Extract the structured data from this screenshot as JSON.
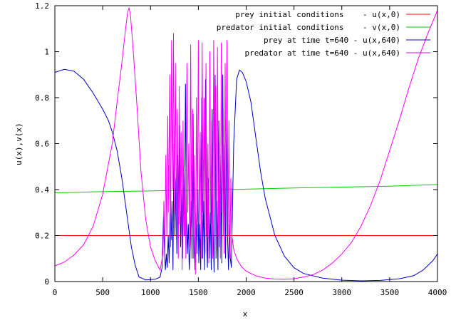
{
  "chart_data": {
    "type": "line",
    "title": "",
    "xlabel": "x",
    "ylabel": "u(x),v(x)",
    "xlim": [
      0,
      4000
    ],
    "ylim": [
      0,
      1.2
    ],
    "x_ticks": [
      0,
      500,
      1000,
      1500,
      2000,
      2500,
      3000,
      3500,
      4000
    ],
    "y_ticks": [
      0,
      0.2,
      0.4,
      0.6,
      0.8,
      1,
      1.2
    ],
    "grid": false,
    "legend_position": "top-right",
    "series": [
      {
        "name": "prey initial conditions    - u(x,0)",
        "color": "#ff0000",
        "points": [
          [
            0,
            0.2
          ],
          [
            4000,
            0.2
          ]
        ]
      },
      {
        "name": "predator initial conditions    - v(x,0)",
        "color": "#00cc00",
        "points": [
          [
            0,
            0.386
          ],
          [
            500,
            0.391
          ],
          [
            1000,
            0.394
          ],
          [
            1500,
            0.398
          ],
          [
            2000,
            0.402
          ],
          [
            2500,
            0.407
          ],
          [
            3000,
            0.411
          ],
          [
            3500,
            0.415
          ],
          [
            4000,
            0.422
          ]
        ]
      },
      {
        "name": "prey at time t=640 - u(x,640)",
        "color": "#0000cc",
        "points": [
          [
            0,
            0.91
          ],
          [
            100,
            0.923
          ],
          [
            200,
            0.915
          ],
          [
            300,
            0.88
          ],
          [
            400,
            0.82
          ],
          [
            500,
            0.75
          ],
          [
            560,
            0.7
          ],
          [
            600,
            0.65
          ],
          [
            650,
            0.57
          ],
          [
            700,
            0.45
          ],
          [
            750,
            0.3
          ],
          [
            800,
            0.15
          ],
          [
            840,
            0.07
          ],
          [
            880,
            0.02
          ],
          [
            950,
            0.007
          ],
          [
            1050,
            0.01
          ],
          [
            1100,
            0.02
          ],
          [
            1120,
            0.06
          ],
          [
            1135,
            0.28
          ],
          [
            1145,
            0.15
          ],
          [
            1155,
            0.05
          ],
          [
            1165,
            0.12
          ],
          [
            1175,
            0.06
          ],
          [
            1185,
            0.2
          ],
          [
            1195,
            0.08
          ],
          [
            1205,
            0.3
          ],
          [
            1215,
            0.18
          ],
          [
            1225,
            0.35
          ],
          [
            1235,
            0.05
          ],
          [
            1245,
            0.6
          ],
          [
            1255,
            0.2
          ],
          [
            1265,
            0.45
          ],
          [
            1275,
            0.12
          ],
          [
            1285,
            0.55
          ],
          [
            1295,
            0.25
          ],
          [
            1305,
            0.68
          ],
          [
            1315,
            0.15
          ],
          [
            1325,
            0.4
          ],
          [
            1335,
            0.1
          ],
          [
            1345,
            0.5
          ],
          [
            1355,
            0.2
          ],
          [
            1365,
            0.86
          ],
          [
            1375,
            0.3
          ],
          [
            1385,
            0.12
          ],
          [
            1395,
            0.25
          ],
          [
            1405,
            0.05
          ],
          [
            1415,
            0.15
          ],
          [
            1425,
            0.35
          ],
          [
            1435,
            0.1
          ],
          [
            1445,
            0.73
          ],
          [
            1455,
            0.2
          ],
          [
            1465,
            0.05
          ],
          [
            1475,
            0.3
          ],
          [
            1485,
            0.12
          ],
          [
            1495,
            0.4
          ],
          [
            1505,
            0.08
          ],
          [
            1515,
            0.25
          ],
          [
            1525,
            0.05
          ],
          [
            1535,
            0.8
          ],
          [
            1545,
            0.1
          ],
          [
            1555,
            0.35
          ],
          [
            1565,
            0.05
          ],
          [
            1575,
            0.88
          ],
          [
            1585,
            0.2
          ],
          [
            1595,
            0.06
          ],
          [
            1605,
            0.45
          ],
          [
            1615,
            0.1
          ],
          [
            1625,
            0.3
          ],
          [
            1635,
            0.05
          ],
          [
            1645,
            0.75
          ],
          [
            1655,
            0.2
          ],
          [
            1665,
            0.04
          ],
          [
            1675,
            0.9
          ],
          [
            1685,
            0.1
          ],
          [
            1695,
            0.35
          ],
          [
            1705,
            0.05
          ],
          [
            1715,
            0.7
          ],
          [
            1725,
            0.15
          ],
          [
            1735,
            0.55
          ],
          [
            1745,
            0.08
          ],
          [
            1755,
            0.9
          ],
          [
            1765,
            0.2
          ],
          [
            1775,
            0.6
          ],
          [
            1785,
            0.1
          ],
          [
            1795,
            0.72
          ],
          [
            1805,
            0.2
          ],
          [
            1815,
            0.05
          ],
          [
            1825,
            0.25
          ],
          [
            1835,
            0.1
          ],
          [
            1845,
            0.06
          ],
          [
            1870,
            0.6
          ],
          [
            1900,
            0.88
          ],
          [
            1930,
            0.92
          ],
          [
            1960,
            0.91
          ],
          [
            2000,
            0.87
          ],
          [
            2050,
            0.78
          ],
          [
            2100,
            0.63
          ],
          [
            2150,
            0.48
          ],
          [
            2200,
            0.36
          ],
          [
            2300,
            0.2
          ],
          [
            2400,
            0.11
          ],
          [
            2500,
            0.06
          ],
          [
            2600,
            0.035
          ],
          [
            2800,
            0.015
          ],
          [
            3000,
            0.006
          ],
          [
            3200,
            0.003
          ],
          [
            3400,
            0.005
          ],
          [
            3600,
            0.012
          ],
          [
            3750,
            0.025
          ],
          [
            3850,
            0.05
          ],
          [
            3950,
            0.09
          ],
          [
            4000,
            0.12
          ]
        ]
      },
      {
        "name": "predator at time t=640 - u(x,640)",
        "color": "#ff00ff",
        "points": [
          [
            0,
            0.068
          ],
          [
            100,
            0.085
          ],
          [
            200,
            0.115
          ],
          [
            300,
            0.16
          ],
          [
            400,
            0.24
          ],
          [
            500,
            0.38
          ],
          [
            600,
            0.6
          ],
          [
            650,
            0.78
          ],
          [
            700,
            0.95
          ],
          [
            740,
            1.1
          ],
          [
            760,
            1.17
          ],
          [
            775,
            1.19
          ],
          [
            790,
            1.16
          ],
          [
            820,
            1.0
          ],
          [
            860,
            0.75
          ],
          [
            900,
            0.48
          ],
          [
            950,
            0.27
          ],
          [
            1000,
            0.15
          ],
          [
            1050,
            0.09
          ],
          [
            1100,
            0.05
          ],
          [
            1130,
            0.12
          ],
          [
            1140,
            0.35
          ],
          [
            1150,
            0.1
          ],
          [
            1160,
            0.55
          ],
          [
            1170,
            0.2
          ],
          [
            1180,
            0.72
          ],
          [
            1190,
            0.3
          ],
          [
            1200,
            0.9
          ],
          [
            1210,
            0.15
          ],
          [
            1220,
            1.05
          ],
          [
            1230,
            0.4
          ],
          [
            1240,
            1.08
          ],
          [
            1250,
            0.3
          ],
          [
            1260,
            0.95
          ],
          [
            1270,
            0.2
          ],
          [
            1280,
            0.75
          ],
          [
            1290,
            0.1
          ],
          [
            1300,
            0.85
          ],
          [
            1310,
            0.25
          ],
          [
            1320,
            0.65
          ],
          [
            1330,
            0.05
          ],
          [
            1340,
            0.7
          ],
          [
            1350,
            0.2
          ],
          [
            1360,
            0.5
          ],
          [
            1370,
            0.1
          ],
          [
            1380,
            0.95
          ],
          [
            1390,
            0.3
          ],
          [
            1400,
            0.6
          ],
          [
            1410,
            0.15
          ],
          [
            1420,
            1.03
          ],
          [
            1430,
            0.2
          ],
          [
            1440,
            0.75
          ],
          [
            1450,
            0.1
          ],
          [
            1460,
            0.55
          ],
          [
            1470,
            0.03
          ],
          [
            1480,
            0.8
          ],
          [
            1490,
            0.25
          ],
          [
            1500,
            1.05
          ],
          [
            1510,
            0.2
          ],
          [
            1520,
            0.65
          ],
          [
            1530,
            0.1
          ],
          [
            1540,
            1.04
          ],
          [
            1550,
            0.3
          ],
          [
            1560,
            0.8
          ],
          [
            1570,
            0.12
          ],
          [
            1580,
            0.95
          ],
          [
            1590,
            0.2
          ],
          [
            1600,
            0.6
          ],
          [
            1610,
            0.08
          ],
          [
            1620,
            1.0
          ],
          [
            1630,
            0.25
          ],
          [
            1640,
            0.7
          ],
          [
            1650,
            0.1
          ],
          [
            1660,
            1.05
          ],
          [
            1670,
            0.3
          ],
          [
            1680,
            0.85
          ],
          [
            1690,
            0.15
          ],
          [
            1700,
            1.02
          ],
          [
            1710,
            0.2
          ],
          [
            1720,
            0.6
          ],
          [
            1730,
            0.1
          ],
          [
            1740,
            1.04
          ],
          [
            1750,
            0.3
          ],
          [
            1760,
            0.75
          ],
          [
            1770,
            0.12
          ],
          [
            1780,
            0.95
          ],
          [
            1790,
            0.25
          ],
          [
            1800,
            1.05
          ],
          [
            1810,
            0.2
          ],
          [
            1820,
            0.7
          ],
          [
            1830,
            0.1
          ],
          [
            1840,
            0.45
          ],
          [
            1850,
            0.2
          ],
          [
            1870,
            0.14
          ],
          [
            1900,
            0.1
          ],
          [
            1950,
            0.065
          ],
          [
            2000,
            0.045
          ],
          [
            2100,
            0.025
          ],
          [
            2200,
            0.015
          ],
          [
            2300,
            0.011
          ],
          [
            2400,
            0.01
          ],
          [
            2500,
            0.012
          ],
          [
            2600,
            0.02
          ],
          [
            2700,
            0.03
          ],
          [
            2800,
            0.05
          ],
          [
            2900,
            0.08
          ],
          [
            3000,
            0.12
          ],
          [
            3100,
            0.17
          ],
          [
            3200,
            0.24
          ],
          [
            3300,
            0.33
          ],
          [
            3400,
            0.44
          ],
          [
            3500,
            0.57
          ],
          [
            3600,
            0.7
          ],
          [
            3700,
            0.84
          ],
          [
            3800,
            0.97
          ],
          [
            3900,
            1.08
          ],
          [
            4000,
            1.18
          ]
        ]
      }
    ]
  }
}
